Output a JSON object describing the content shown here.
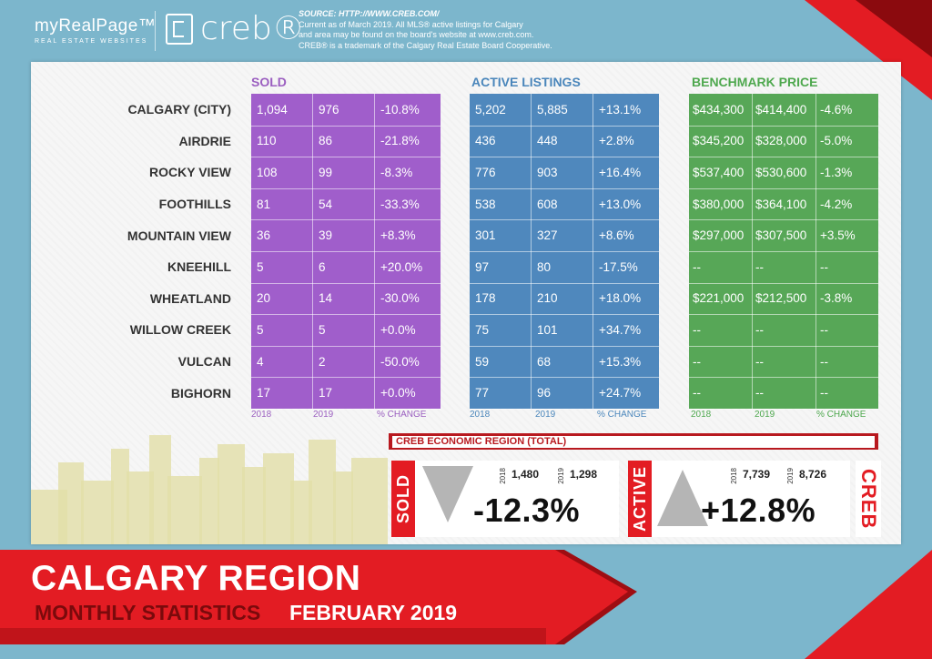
{
  "header": {
    "brand_name": "myRealPage™",
    "brand_sub": "REAL ESTATE WEBSITES",
    "logo_text": "creb®",
    "source_line1": "SOURCE: HTTP://WWW.CREB.COM/",
    "source_line2": "Current as of March 2019.  All MLS® active listings for Calgary",
    "source_line3": "and area may be found on the board's website at www.creb.com.",
    "source_line4": "CREB® is a trademark of the Calgary Real Estate Board Cooperative."
  },
  "sections": {
    "sold": "SOLD",
    "active": "ACTIVE LISTINGS",
    "bench": "BENCHMARK PRICE"
  },
  "footers": {
    "y2018": "2018",
    "y2019": "2019",
    "change": "% CHANGE"
  },
  "rows": [
    {
      "label": "CALGARY (CITY)",
      "sold": [
        "1,094",
        "976",
        "-10.8%"
      ],
      "active": [
        "5,202",
        "5,885",
        "+13.1%"
      ],
      "bench": [
        "$434,300",
        "$414,400",
        "-4.6%"
      ]
    },
    {
      "label": "AIRDRIE",
      "sold": [
        "110",
        "86",
        "-21.8%"
      ],
      "active": [
        "436",
        "448",
        "+2.8%"
      ],
      "bench": [
        "$345,200",
        "$328,000",
        "-5.0%"
      ]
    },
    {
      "label": "ROCKY VIEW",
      "sold": [
        "108",
        "99",
        "-8.3%"
      ],
      "active": [
        "776",
        "903",
        "+16.4%"
      ],
      "bench": [
        "$537,400",
        "$530,600",
        "-1.3%"
      ]
    },
    {
      "label": "FOOTHILLS",
      "sold": [
        "81",
        "54",
        "-33.3%"
      ],
      "active": [
        "538",
        "608",
        "+13.0%"
      ],
      "bench": [
        "$380,000",
        "$364,100",
        "-4.2%"
      ]
    },
    {
      "label": "MOUNTAIN VIEW",
      "sold": [
        "36",
        "39",
        "+8.3%"
      ],
      "active": [
        "301",
        "327",
        "+8.6%"
      ],
      "bench": [
        "$297,000",
        "$307,500",
        "+3.5%"
      ]
    },
    {
      "label": "KNEEHILL",
      "sold": [
        "5",
        "6",
        "+20.0%"
      ],
      "active": [
        "97",
        "80",
        "-17.5%"
      ],
      "bench": [
        "--",
        "--",
        "--"
      ]
    },
    {
      "label": "WHEATLAND",
      "sold": [
        "20",
        "14",
        "-30.0%"
      ],
      "active": [
        "178",
        "210",
        "+18.0%"
      ],
      "bench": [
        "$221,000",
        "$212,500",
        "-3.8%"
      ]
    },
    {
      "label": "WILLOW CREEK",
      "sold": [
        "5",
        "5",
        "+0.0%"
      ],
      "active": [
        "75",
        "101",
        "+34.7%"
      ],
      "bench": [
        "--",
        "--",
        "--"
      ]
    },
    {
      "label": "VULCAN",
      "sold": [
        "4",
        "2",
        "-50.0%"
      ],
      "active": [
        "59",
        "68",
        "+15.3%"
      ],
      "bench": [
        "--",
        "--",
        "--"
      ]
    },
    {
      "label": "BIGHORN",
      "sold": [
        "17",
        "17",
        "+0.0%"
      ],
      "active": [
        "77",
        "96",
        "+24.7%"
      ],
      "bench": [
        "--",
        "--",
        "--"
      ]
    }
  ],
  "economic": {
    "title": "CREB ECONOMIC REGION (TOTAL)",
    "sold_label": "SOLD",
    "active_label": "ACTIVE",
    "creb_label": "CREB",
    "sold_2018_label": "2018",
    "sold_2018": "1,480",
    "sold_2019_label": "2019",
    "sold_2019": "1,298",
    "sold_pct": "-12.3%",
    "active_2018_label": "2018",
    "active_2018": "7,739",
    "active_2019_label": "2019",
    "active_2019": "8,726",
    "active_pct": "+12.8%"
  },
  "banner": {
    "title": "CALGARY REGION",
    "subtitle": "MONTHLY STATISTICS",
    "month": "FEBRUARY 2019"
  },
  "colors": {
    "sold": "#a05ecb",
    "active": "#4f88bd",
    "bench": "#57a757",
    "accent_red": "#e31c23"
  }
}
